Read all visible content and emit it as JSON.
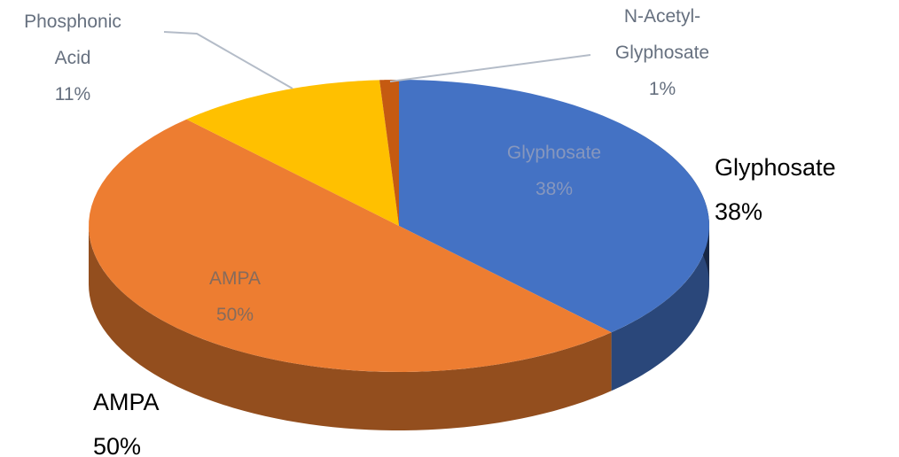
{
  "chart_data": {
    "type": "pie3d",
    "categories": [
      "Glyphosate",
      "AMPA",
      "Phosphonic Acid",
      "N-Acetyl-Glyphosate"
    ],
    "values": [
      38,
      50,
      11,
      1
    ],
    "value_labels": [
      "38%",
      "50%",
      "11%",
      "1%"
    ],
    "colors": [
      "#4472c4",
      "#ed7d31",
      "#ffc000",
      "#c55a11"
    ]
  }
}
